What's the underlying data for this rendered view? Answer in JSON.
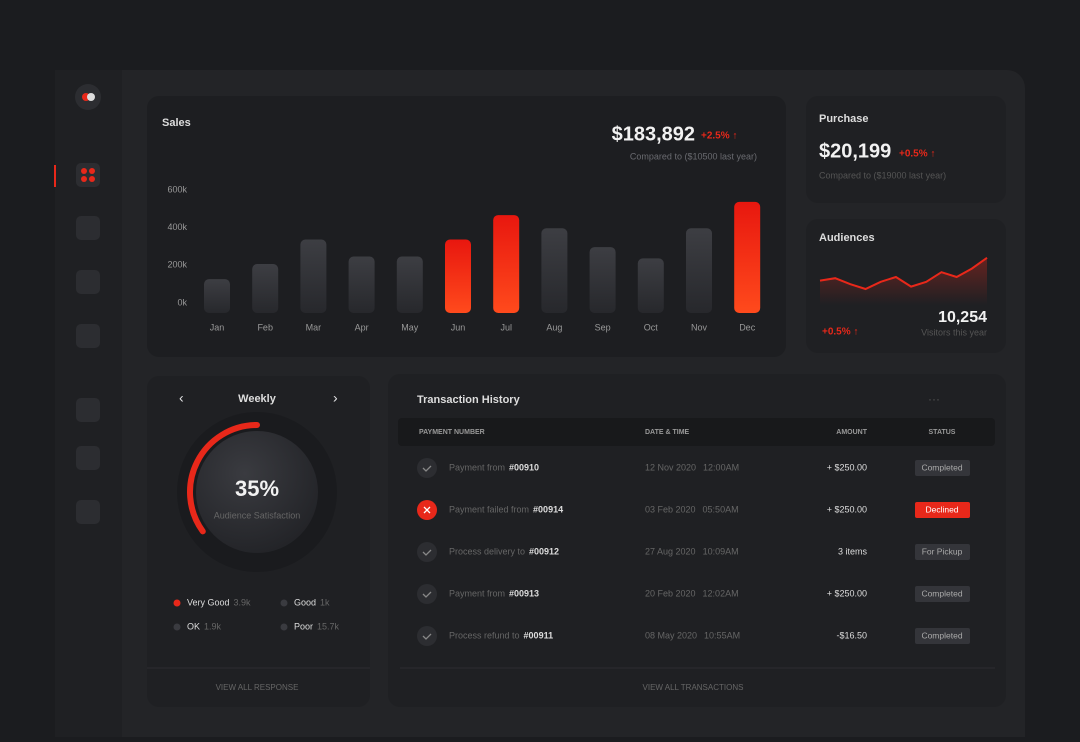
{
  "sales": {
    "title": "Sales",
    "total": "$183,892",
    "change": "+2.5% ↑",
    "note": "Compared to ($10500 last year)",
    "chart": {
      "type": "bar",
      "categories": [
        "Jan",
        "Feb",
        "Mar",
        "Apr",
        "May",
        "Jun",
        "Jul",
        "Aug",
        "Sep",
        "Oct",
        "Nov",
        "Dec"
      ],
      "values": [
        180000,
        260000,
        390000,
        300000,
        300000,
        390000,
        520000,
        450000,
        350000,
        290000,
        450000,
        590000
      ],
      "colors": [
        "grey",
        "grey",
        "grey",
        "grey",
        "grey",
        "red",
        "red",
        "grey",
        "grey",
        "grey",
        "grey",
        "red"
      ],
      "ylim": [
        0,
        600000
      ],
      "yticks": [
        {
          "value": 0,
          "label": "0k"
        },
        {
          "value": 200000,
          "label": "200k"
        },
        {
          "value": 400000,
          "label": "400k"
        },
        {
          "value": 600000,
          "label": "600k"
        }
      ]
    }
  },
  "purchase": {
    "title": "Purchase",
    "total": "$20,199",
    "change": "+0.5% ↑",
    "note": "Compared to ($19000 last year)"
  },
  "audiences": {
    "title": "Audiences",
    "change": "+0.5% ↑",
    "total": "10,254",
    "note": "Visitors this year",
    "chart": {
      "type": "line",
      "values": [
        12,
        14,
        9,
        5,
        11,
        15,
        7,
        11,
        19,
        15,
        22,
        31
      ],
      "ylim": [
        0,
        35
      ],
      "color": "#e8281a"
    }
  },
  "weekly": {
    "title": "Weekly",
    "gauge": {
      "value": 35,
      "label": "35%"
    },
    "caption": "Audience Satisfaction",
    "legend": [
      {
        "name": "Very Good",
        "count": "3.9k",
        "color": "#e8281a"
      },
      {
        "name": "Good",
        "count": "1k",
        "color": "#3a3b40"
      },
      {
        "name": "OK",
        "count": "1.9k",
        "color": "#3a3b40"
      },
      {
        "name": "Poor",
        "count": "15.7k",
        "color": "#3a3b40"
      }
    ],
    "footer": "VIEW ALL RESPONSE"
  },
  "transactions": {
    "title": "Transaction History",
    "columns": [
      "PAYMENT NUMBER",
      "DATE & TIME",
      "AMOUNT",
      "STATUS"
    ],
    "rows": [
      {
        "label": "Payment from",
        "ref": "#00910",
        "date": "12 Nov 2020",
        "time": "12:00AM",
        "amount": "+ $250.00",
        "status": "Completed"
      },
      {
        "label": "Payment failed from",
        "ref": "#00914",
        "date": "03 Feb 2020",
        "time": "05:50AM",
        "amount": "+ $250.00",
        "status": "Declined"
      },
      {
        "label": "Process delivery to",
        "ref": "#00912",
        "date": "27 Aug 2020",
        "time": "10:09AM",
        "amount": "3 items",
        "status": "For Pickup"
      },
      {
        "label": "Payment from",
        "ref": "#00913",
        "date": "20 Feb 2020",
        "time": "12:02AM",
        "amount": "+ $250.00",
        "status": "Completed"
      },
      {
        "label": "Process refund to",
        "ref": "#00911",
        "date": "08 May 2020",
        "time": "10:55AM",
        "amount": "-$16.50",
        "status": "Completed"
      }
    ],
    "footer": "VIEW ALL TRANSACTIONS"
  }
}
